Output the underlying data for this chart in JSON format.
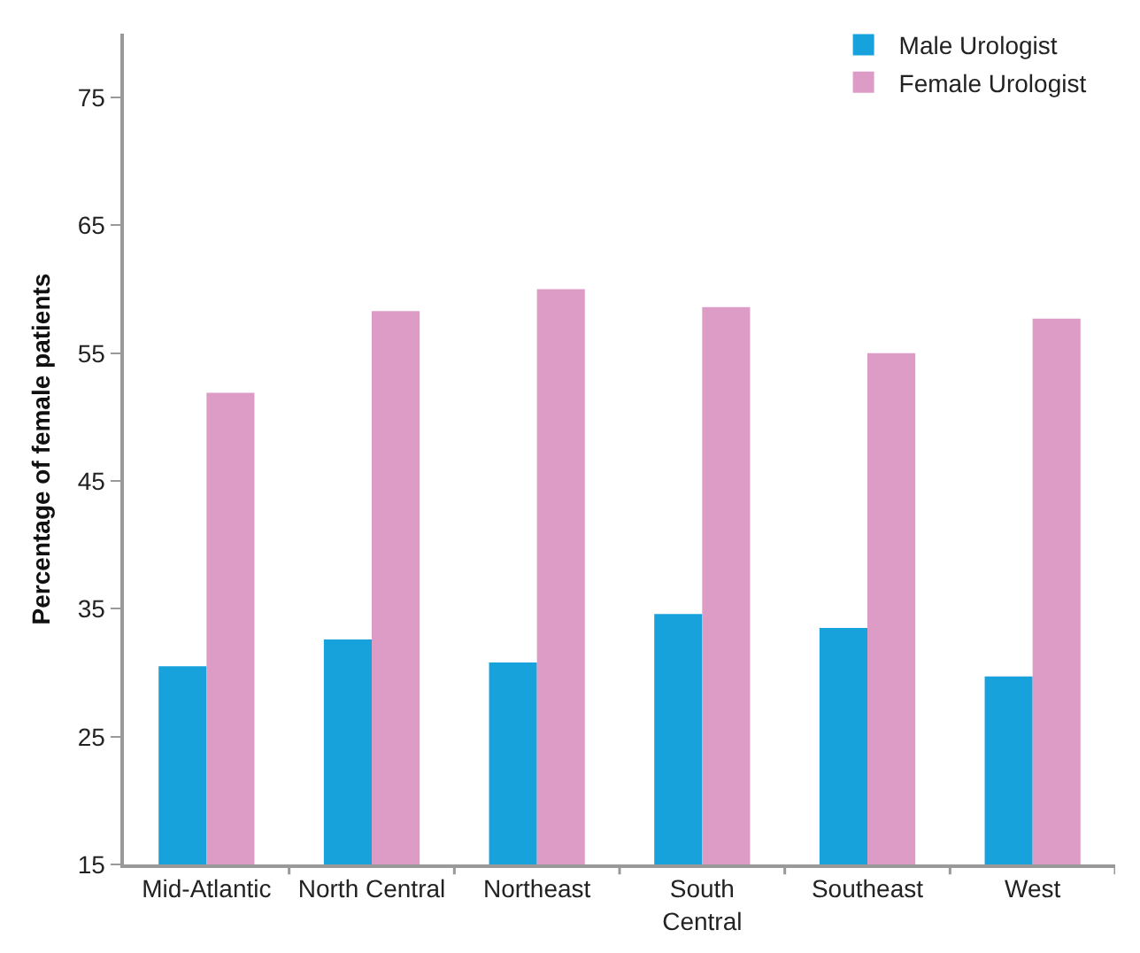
{
  "chart_data": {
    "type": "bar",
    "ylabel": "Percentage of female patients",
    "categories": [
      "Mid-Atlantic",
      "North Central",
      "Northeast",
      "South\nCentral",
      "Southeast",
      "West"
    ],
    "series": [
      {
        "name": "Male Urologist",
        "color": "#17a2dc",
        "values": [
          30.5,
          32.6,
          30.8,
          34.6,
          33.5,
          29.7
        ]
      },
      {
        "name": "Female Urologist",
        "color": "#dd9cc6",
        "values": [
          51.9,
          58.3,
          60.0,
          58.6,
          55.0,
          57.7
        ]
      }
    ],
    "ylim": [
      15,
      80
    ],
    "yticks": [
      15,
      25,
      35,
      45,
      55,
      65,
      75
    ],
    "grid": false,
    "legend": "top right"
  }
}
